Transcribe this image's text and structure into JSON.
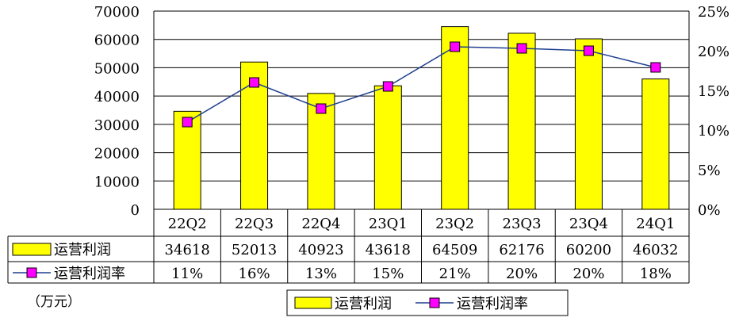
{
  "chart_data": {
    "type": "bar",
    "categories": [
      "22Q2",
      "22Q3",
      "22Q4",
      "23Q1",
      "23Q2",
      "23Q3",
      "23Q4",
      "24Q1"
    ],
    "series": [
      {
        "name": "运营利润",
        "type": "bar",
        "axis": "left",
        "color": "#ffff00",
        "values": [
          34618,
          52013,
          40923,
          43618,
          64509,
          62176,
          60200,
          46032
        ],
        "table_labels": [
          "34618",
          "52013",
          "40923",
          "43618",
          "64509",
          "62176",
          "60200",
          "46032"
        ]
      },
      {
        "name": "运营利润率",
        "type": "line",
        "axis": "right",
        "color": "#ff00ff",
        "values": [
          0.11,
          0.16,
          0.127,
          0.155,
          0.205,
          0.203,
          0.2,
          0.179
        ],
        "table_labels": [
          "11%",
          "16%",
          "13%",
          "15%",
          "21%",
          "20%",
          "20%",
          "18%"
        ]
      }
    ],
    "y_left": {
      "range": [
        0,
        70000
      ],
      "ticks": [
        0,
        10000,
        20000,
        30000,
        40000,
        50000,
        60000,
        70000
      ],
      "tick_labels": [
        "0",
        "10000",
        "20000",
        "30000",
        "40000",
        "50000",
        "60000",
        "70000"
      ]
    },
    "y_right": {
      "range": [
        0,
        0.25
      ],
      "ticks": [
        0,
        0.05,
        0.1,
        0.15,
        0.2,
        0.25
      ],
      "tick_labels": [
        "0%",
        "5%",
        "10%",
        "15%",
        "20%",
        "25%"
      ]
    },
    "unit_label": "（万元）",
    "grid": "horizontal",
    "data_table": true,
    "legend_position": "bottom-center"
  }
}
